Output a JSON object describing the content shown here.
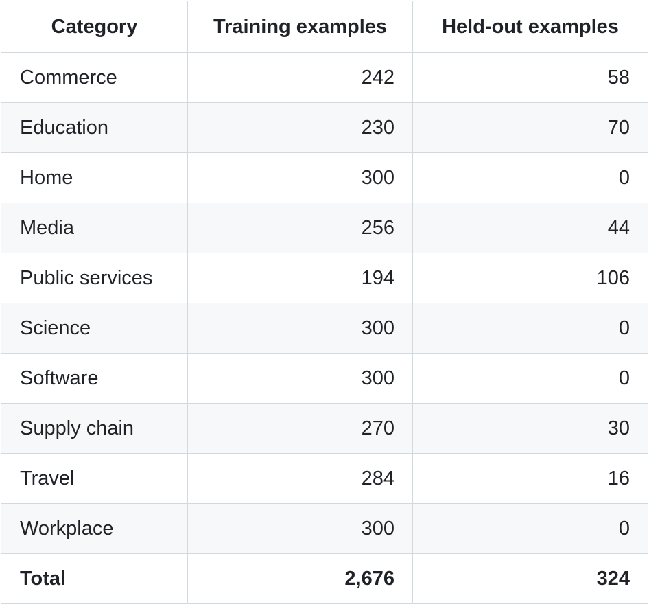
{
  "table": {
    "header": [
      "Category",
      "Training examples",
      "Held-out examples"
    ],
    "rows": [
      [
        "Commerce",
        242,
        58
      ],
      [
        "Education",
        230,
        70
      ],
      [
        "Home",
        300,
        0
      ],
      [
        "Media",
        256,
        44
      ],
      [
        "Public services",
        194,
        106
      ],
      [
        "Science",
        300,
        0
      ],
      [
        "Software",
        300,
        0
      ],
      [
        "Supply chain",
        270,
        30
      ],
      [
        "Travel",
        284,
        16
      ],
      [
        "Workplace",
        300,
        0
      ]
    ],
    "footer": [
      "Total",
      {
        "value": 2676,
        "label": "2,676"
      },
      324
    ]
  }
}
